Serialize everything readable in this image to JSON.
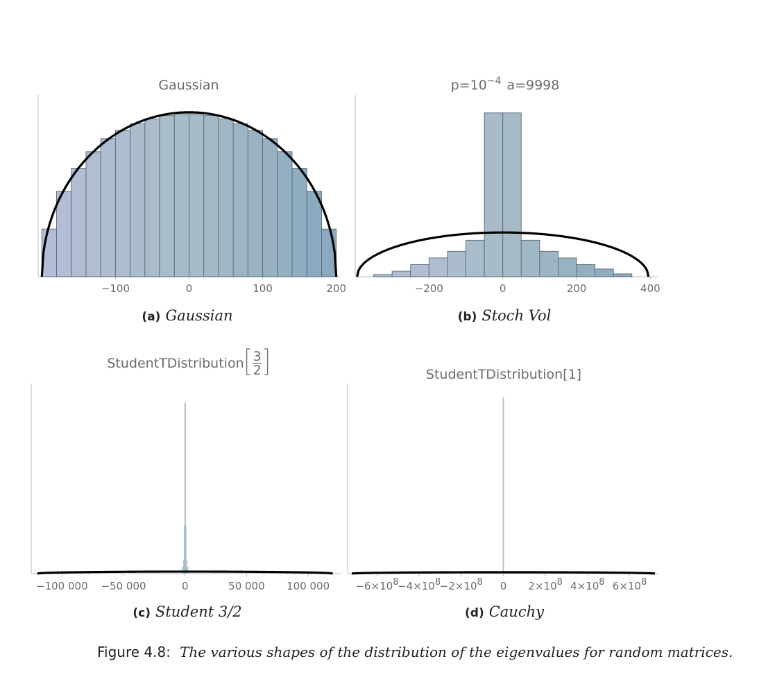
{
  "chart_data": [
    {
      "type": "bar",
      "title": "Gaussian",
      "subcaption_label": "(a)",
      "subcaption_text": "Gaussian",
      "bin_edges": [
        -200,
        -180,
        -160,
        -140,
        -120,
        -100,
        -80,
        -60,
        -40,
        -20,
        0,
        20,
        40,
        60,
        80,
        100,
        120,
        140,
        160,
        180,
        200
      ],
      "values": [
        29,
        52,
        66,
        76,
        84,
        89,
        93,
        96,
        98,
        99,
        99,
        98,
        96,
        93,
        89,
        84,
        76,
        66,
        52,
        29
      ],
      "ylim": [
        0,
        105
      ],
      "x_ticks": [
        -100,
        0,
        100,
        200
      ],
      "x_tick_labels": [
        "−100",
        "0",
        "100",
        "200"
      ],
      "xlim": [
        -205,
        205
      ],
      "curve": {
        "type": "semicircle",
        "center": 0,
        "radius": 200,
        "height": 100
      }
    },
    {
      "type": "bar",
      "title": "p=10",
      "title_exponent": "−4",
      "title_suffix": "a=9998",
      "subcaption_label": "(b)",
      "subcaption_text": "Stoch Vol",
      "bin_edges": [
        -350,
        -300,
        -250,
        -200,
        -150,
        -100,
        -50,
        0,
        50,
        100,
        150,
        200,
        250,
        300,
        350
      ],
      "values": [
        1,
        2.5,
        5.5,
        8.5,
        11.5,
        16.5,
        74,
        74,
        16.5,
        11.5,
        8.5,
        5.5,
        3.5,
        1.3
      ],
      "ylim": [
        0,
        78
      ],
      "x_ticks": [
        -200,
        0,
        200,
        400
      ],
      "x_tick_labels": [
        "−200",
        "0",
        "200",
        "400"
      ],
      "xlim": [
        -400,
        420
      ],
      "curve": {
        "type": "semicircle",
        "center": 0,
        "radius": 395,
        "height": 20
      }
    },
    {
      "type": "bar",
      "title": "StudentTDistribution",
      "title_fraction": {
        "numerator": "3",
        "denominator": "2"
      },
      "subcaption_label": "(c)",
      "subcaption_text": "Student 3/2",
      "bin_edges": [
        -2500,
        -1500,
        -1000,
        -500,
        0,
        500,
        1000,
        1500,
        2500
      ],
      "values": [
        4,
        8,
        28,
        100,
        100,
        28,
        8,
        4
      ],
      "ylim": [
        0,
        105
      ],
      "x_ticks": [
        -100000,
        -50000,
        0,
        50000,
        100000
      ],
      "x_tick_labels": [
        "−100 000",
        "−50 000",
        "0",
        "50 000",
        "100 000"
      ],
      "xlim": [
        -125000,
        127000
      ],
      "curve": {
        "type": "semicircle",
        "center": 0,
        "radius": 120000,
        "height": 1.2
      }
    },
    {
      "type": "bar",
      "title": "StudentTDistribution[1]",
      "subcaption_label": "(d)",
      "subcaption_text": "Cauchy",
      "bin_edges": [
        -3000000,
        3000000
      ],
      "values": [
        100
      ],
      "ylim": [
        0,
        102
      ],
      "x_ticks": [
        -600000000,
        -400000000,
        -200000000,
        0,
        200000000,
        400000000,
        600000000
      ],
      "x_tick_labels": [
        "−6×10",
        "−4×10",
        "−2×10",
        "0",
        "2×10",
        "4×10",
        "6×10"
      ],
      "x_tick_exponents": [
        "8",
        "8",
        "8",
        "",
        "8",
        "8",
        "8"
      ],
      "xlim": [
        -740000000,
        740000000
      ],
      "curve": {
        "type": "semicircle",
        "center": 0,
        "radius": 720000000,
        "height": 0.8
      }
    }
  ],
  "caption": {
    "label": "Figure 4.8:",
    "text": "The various shapes of the distribution of the eigenvalues for random matrices."
  },
  "colors": {
    "bar_light": "#b4bdd8",
    "bar_mid": "#a6bcc7",
    "bar_dark": "#8aa9bf",
    "bar_stroke": "#5a6a72",
    "curve": "#000000",
    "axis": "#bdbdbd"
  }
}
